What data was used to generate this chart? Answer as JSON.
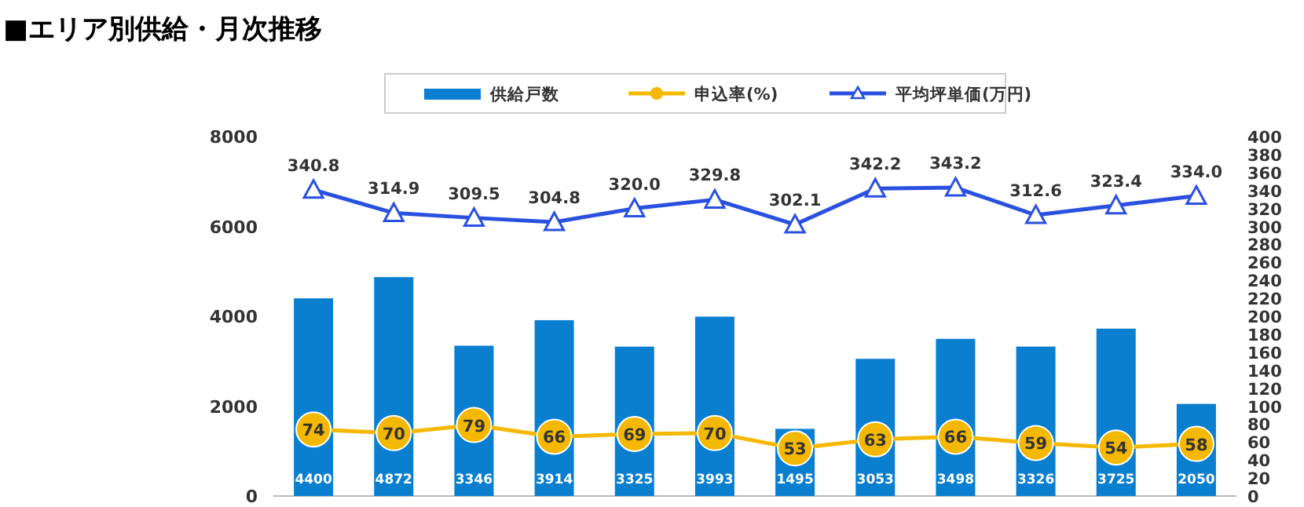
{
  "chart_data": {
    "type": "bar",
    "title": "■エリア別供給・月次推移",
    "categories": [
      null,
      null,
      null,
      null,
      null,
      null,
      null,
      null,
      null,
      null,
      null,
      null
    ],
    "series": [
      {
        "name": "供給戸数",
        "color": "#0a7fd0",
        "values": [
          4400,
          4872,
          3346,
          3914,
          3325,
          3993,
          1495,
          3053,
          3498,
          3326,
          3725,
          2050
        ]
      },
      {
        "name": "申込率(%)",
        "type": "line",
        "axis": "y2",
        "color": "#f5b800",
        "marker": "circle",
        "values": [
          74,
          70,
          79,
          66,
          69,
          70,
          53,
          63,
          66,
          59,
          54,
          58
        ]
      },
      {
        "name": "平均坪単価(万円)",
        "type": "line",
        "axis": "y2",
        "color": "#2a50e0",
        "marker": "triangle",
        "values": [
          340.8,
          314.9,
          309.5,
          304.8,
          320.0,
          329.8,
          302.1,
          342.2,
          343.2,
          312.6,
          323.4,
          334.0
        ],
        "value_labels": [
          "340.8",
          "314.9",
          "309.5",
          "304.8",
          "320.0",
          "329.8",
          "302.1",
          "342.2",
          "343.2",
          "312.6",
          "323.4",
          "334.0"
        ]
      }
    ],
    "ylim": [
      0,
      8000
    ],
    "yticks": [
      0,
      2000,
      4000,
      6000,
      8000
    ],
    "y2lim": [
      0,
      400
    ],
    "y2ticks": [
      0,
      20,
      40,
      60,
      80,
      100,
      120,
      140,
      160,
      180,
      200,
      220,
      240,
      260,
      280,
      300,
      320,
      340,
      360,
      380,
      400
    ],
    "data_labels": true,
    "legend": "top",
    "grid": false
  }
}
